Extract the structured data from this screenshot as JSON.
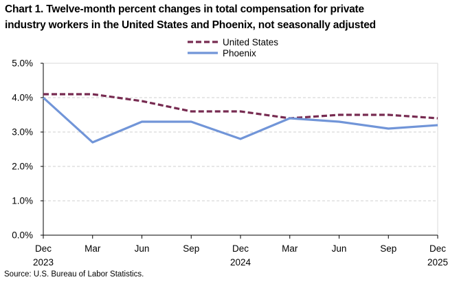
{
  "title_lines": [
    "Chart 1. Twelve-month percent changes in total compensation for private",
    "industry workers in the United States and Phoenix, not seasonally adjusted"
  ],
  "source": "Source: U.S. Bureau of Labor Statistics.",
  "legend": [
    {
      "label": "United States",
      "color": "#772B51",
      "style": "dashed"
    },
    {
      "label": "Phoenix",
      "color": "#7195D8",
      "style": "solid"
    }
  ],
  "chart_data": {
    "type": "line",
    "title": "Chart 1. Twelve-month percent changes in total compensation for private industry workers in the United States and Phoenix, not seasonally adjusted",
    "categories": [
      "Dec 2023",
      "Mar 2024",
      "Jun 2024",
      "Sep 2024",
      "Dec 2024",
      "Mar 2025",
      "Jun 2025",
      "Sep 2025",
      "Dec 2025"
    ],
    "x_tick_labels": [
      [
        "Dec",
        "2023"
      ],
      [
        "Mar",
        ""
      ],
      [
        "Jun",
        ""
      ],
      [
        "Sep",
        ""
      ],
      [
        "Dec",
        "2024"
      ],
      [
        "Mar",
        ""
      ],
      [
        "Jun",
        ""
      ],
      [
        "Sep",
        ""
      ],
      [
        "Dec",
        "2025"
      ]
    ],
    "series": [
      {
        "name": "United States",
        "color": "#772B51",
        "dash": true,
        "values": [
          4.1,
          4.1,
          3.9,
          3.6,
          3.6,
          3.4,
          3.5,
          3.5,
          3.4
        ]
      },
      {
        "name": "Phoenix",
        "color": "#7195D8",
        "dash": false,
        "values": [
          4.0,
          2.7,
          3.3,
          3.3,
          2.8,
          3.4,
          3.3,
          3.1,
          3.2
        ]
      }
    ],
    "ylim": [
      0,
      5
    ],
    "y_step": 1,
    "y_tick_labels": [
      "0.0%",
      "1.0%",
      "2.0%",
      "3.0%",
      "4.0%",
      "5.0%"
    ],
    "ylabel": "",
    "xlabel": "",
    "grid": "horizontal-dashed",
    "legend_position": "top-center"
  }
}
